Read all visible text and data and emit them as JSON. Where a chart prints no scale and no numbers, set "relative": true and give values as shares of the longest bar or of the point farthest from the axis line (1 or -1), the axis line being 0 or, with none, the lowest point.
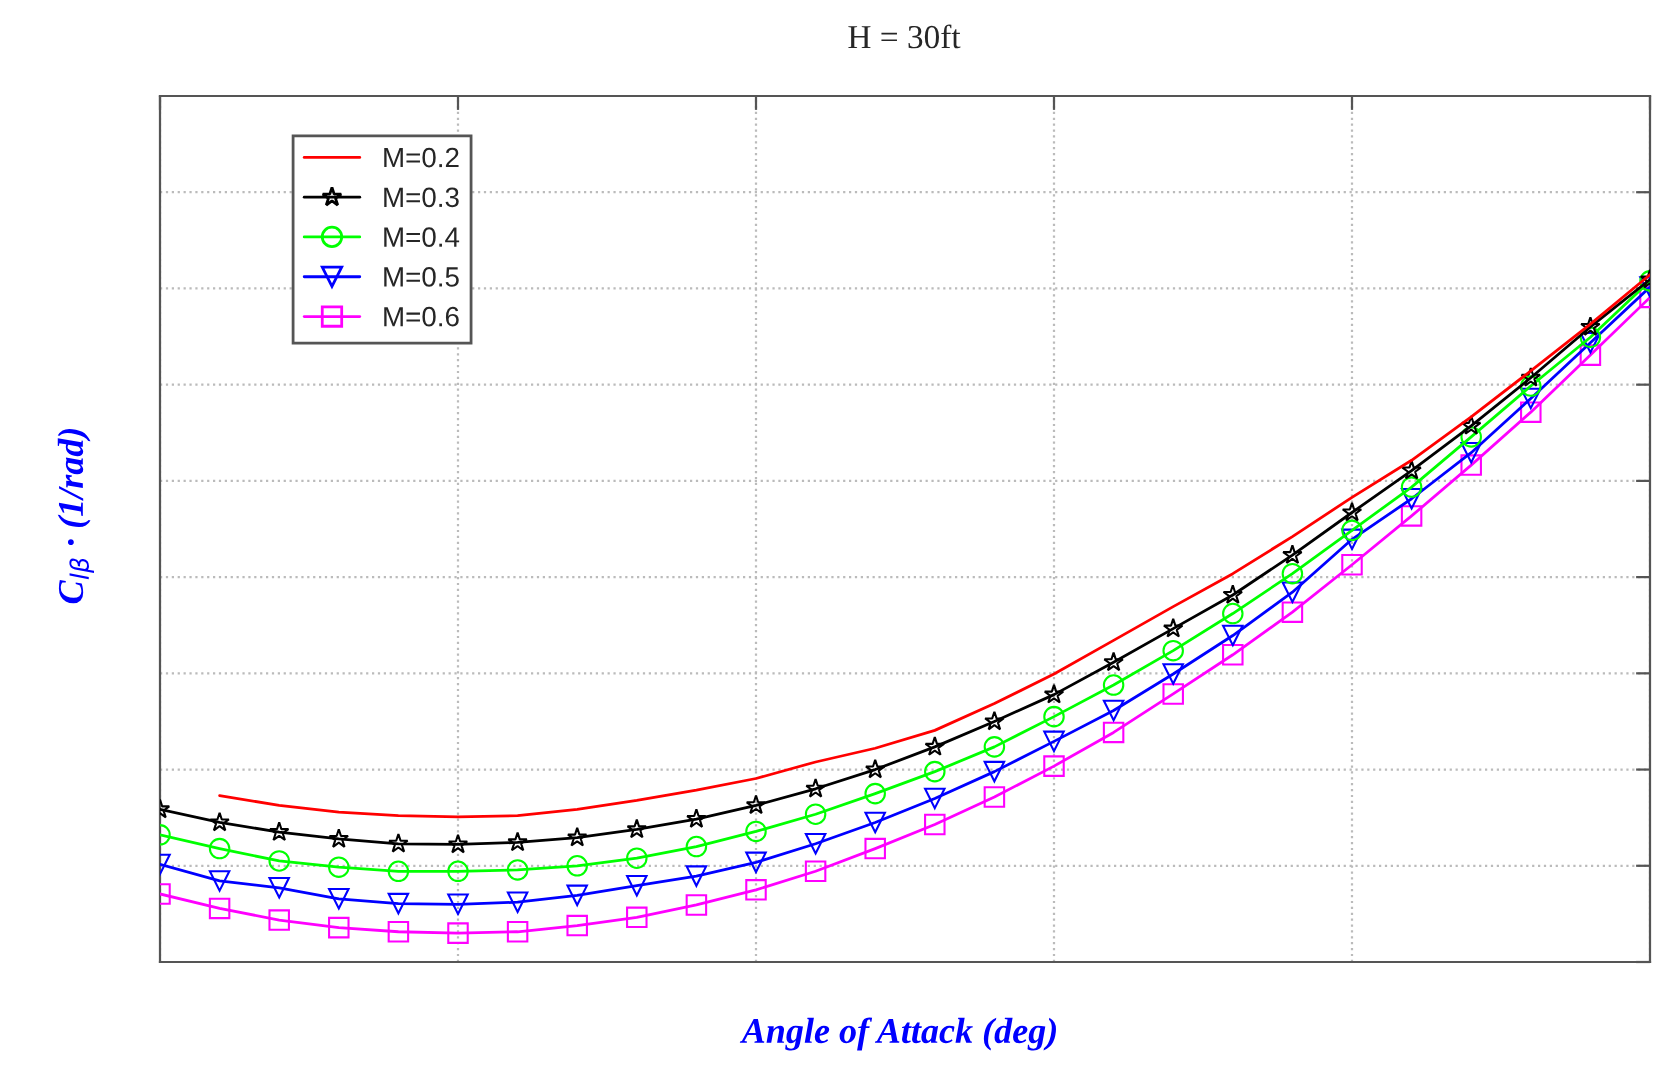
{
  "chart_data": {
    "type": "line",
    "title": "H = 30ft",
    "xlabel": "Angle of Attack (deg)",
    "ylabel": "C$_{lβ}$ · (1/rad)",
    "relative": true,
    "grid": true,
    "legend": "top left",
    "tick_labels": false,
    "line_style": "solid",
    "categories": [
      null,
      null,
      null,
      null,
      null,
      null,
      null,
      null,
      null,
      null,
      null,
      null,
      null,
      null,
      null,
      null,
      null,
      null,
      null,
      null,
      null,
      null,
      null,
      null,
      null,
      null
    ],
    "series": [
      {
        "name": "M=0.2",
        "color": "#ff0000",
        "marker": "none",
        "values": [
          null,
          0.242,
          0.228,
          0.218,
          0.213,
          0.211,
          0.213,
          0.222,
          0.235,
          0.25,
          0.267,
          0.291,
          0.311,
          0.337,
          0.376,
          0.419,
          0.468,
          0.517,
          0.565,
          0.619,
          0.676,
          0.73,
          0.793,
          0.86,
          0.928,
          1.0
        ]
      },
      {
        "name": "M=0.3",
        "color": "#000000",
        "marker": "star",
        "values": [
          0.222,
          0.203,
          0.189,
          0.179,
          0.172,
          0.171,
          0.174,
          0.181,
          0.193,
          0.208,
          0.228,
          0.252,
          0.28,
          0.313,
          0.35,
          0.389,
          0.436,
          0.485,
          0.534,
          0.592,
          0.654,
          0.715,
          0.78,
          0.85,
          0.924,
          0.993
        ]
      },
      {
        "name": "M=0.4",
        "color": "#00ff00",
        "marker": "circle",
        "values": [
          0.185,
          0.165,
          0.147,
          0.138,
          0.132,
          0.132,
          0.134,
          0.14,
          0.151,
          0.168,
          0.19,
          0.215,
          0.245,
          0.277,
          0.313,
          0.357,
          0.403,
          0.453,
          0.507,
          0.565,
          0.628,
          0.691,
          0.764,
          0.838,
          0.909,
          0.991
        ]
      },
      {
        "name": "M=0.5",
        "color": "#0000ff",
        "marker": "triangle",
        "values": [
          0.142,
          0.118,
          0.108,
          0.092,
          0.085,
          0.084,
          0.087,
          0.097,
          0.111,
          0.125,
          0.145,
          0.172,
          0.203,
          0.238,
          0.277,
          0.321,
          0.366,
          0.419,
          0.475,
          0.538,
          0.615,
          0.674,
          0.741,
          0.82,
          0.901,
          0.982
        ]
      },
      {
        "name": "M=0.6",
        "color": "#ff00ff",
        "marker": "square",
        "values": [
          0.099,
          0.078,
          0.061,
          0.05,
          0.044,
          0.042,
          0.044,
          0.053,
          0.065,
          0.083,
          0.105,
          0.132,
          0.165,
          0.2,
          0.24,
          0.285,
          0.334,
          0.39,
          0.447,
          0.509,
          0.578,
          0.649,
          0.723,
          0.8,
          0.883,
          0.967
        ]
      }
    ]
  }
}
